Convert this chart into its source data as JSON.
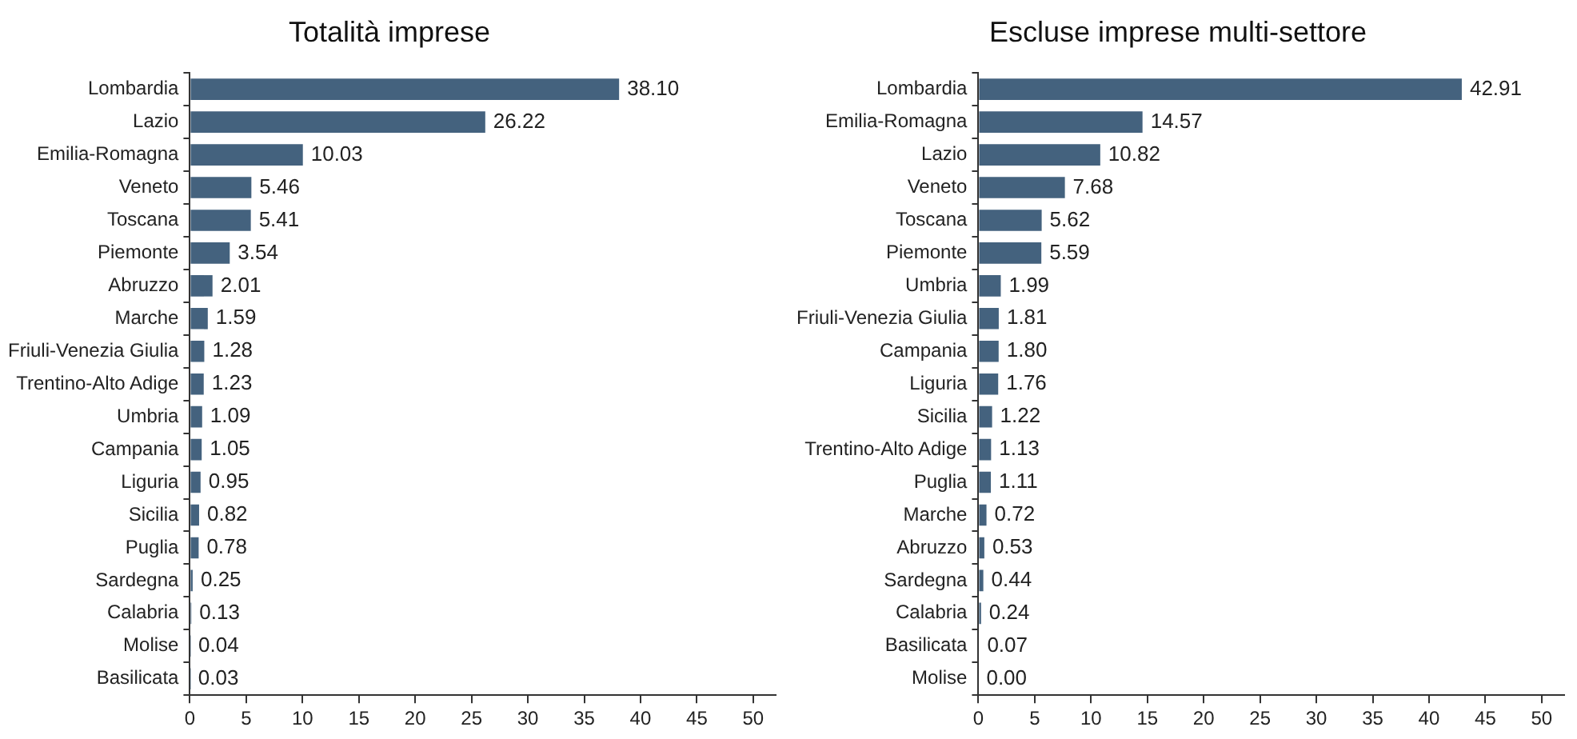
{
  "chart_data": [
    {
      "type": "bar",
      "orientation": "horizontal",
      "title": "Totalità imprese",
      "categories": [
        "Lombardia",
        "Lazio",
        "Emilia-Romagna",
        "Veneto",
        "Toscana",
        "Piemonte",
        "Abruzzo",
        "Marche",
        "Friuli-Venezia Giulia",
        "Trentino-Alto Adige",
        "Umbria",
        "Campania",
        "Liguria",
        "Sicilia",
        "Puglia",
        "Sardegna",
        "Calabria",
        "Molise",
        "Basilicata"
      ],
      "values": [
        38.1,
        26.22,
        10.03,
        5.46,
        5.41,
        3.54,
        2.01,
        1.59,
        1.28,
        1.23,
        1.09,
        1.05,
        0.95,
        0.82,
        0.78,
        0.25,
        0.13,
        0.04,
        0.03
      ],
      "value_labels": [
        "38.10",
        "26.22",
        "10.03",
        "5.46",
        "5.41",
        "3.54",
        "2.01",
        "1.59",
        "1.28",
        "1.23",
        "1.09",
        "1.05",
        "0.95",
        "0.82",
        "0.78",
        "0.25",
        "0.13",
        "0.04",
        "0.03"
      ],
      "color": "#44627e",
      "xlim": [
        0,
        52
      ],
      "xticks": [
        0,
        5,
        10,
        15,
        20,
        25,
        30,
        35,
        40,
        45,
        50
      ],
      "grid": false,
      "legend": false
    },
    {
      "type": "bar",
      "orientation": "horizontal",
      "title": "Escluse imprese multi-settore",
      "categories": [
        "Lombardia",
        "Emilia-Romagna",
        "Lazio",
        "Veneto",
        "Toscana",
        "Piemonte",
        "Umbria",
        "Friuli-Venezia Giulia",
        "Campania",
        "Liguria",
        "Sicilia",
        "Trentino-Alto Adige",
        "Puglia",
        "Marche",
        "Abruzzo",
        "Sardegna",
        "Calabria",
        "Basilicata",
        "Molise"
      ],
      "values": [
        42.91,
        14.57,
        10.82,
        7.68,
        5.62,
        5.59,
        1.99,
        1.81,
        1.8,
        1.76,
        1.22,
        1.13,
        1.11,
        0.72,
        0.53,
        0.44,
        0.24,
        0.07,
        0.0
      ],
      "value_labels": [
        "42.91",
        "14.57",
        "10.82",
        "7.68",
        "5.62",
        "5.59",
        "1.99",
        "1.81",
        "1.80",
        "1.76",
        "1.22",
        "1.13",
        "1.11",
        "0.72",
        "0.53",
        "0.44",
        "0.24",
        "0.07",
        "0.00"
      ],
      "color": "#44627e",
      "xlim": [
        0,
        52
      ],
      "xticks": [
        0,
        5,
        10,
        15,
        20,
        25,
        30,
        35,
        40,
        45,
        50
      ],
      "grid": false,
      "legend": false
    }
  ]
}
